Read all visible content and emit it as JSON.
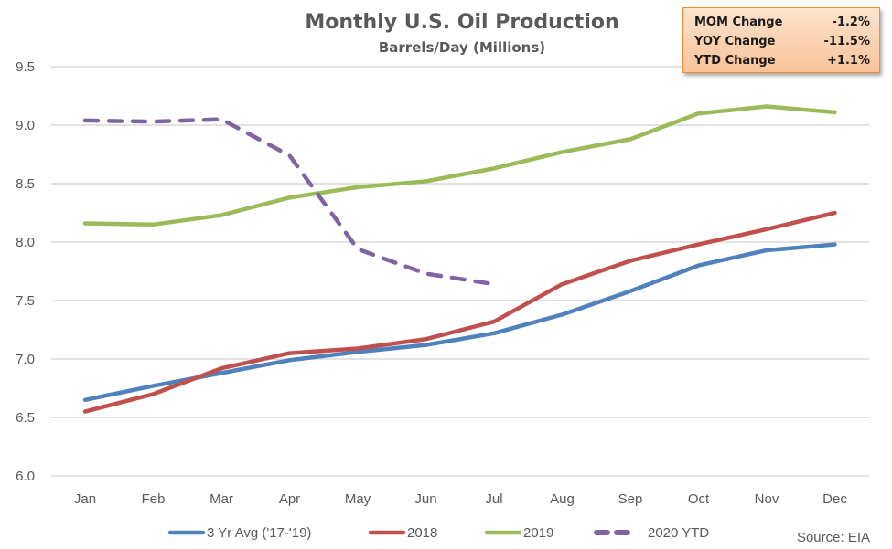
{
  "stats_box": {
    "rows": [
      {
        "label": "MOM Change",
        "value": "-1.2%"
      },
      {
        "label": "YOY Change",
        "value": "-11.5%"
      },
      {
        "label": "YTD Change",
        "value": "+1.1%"
      }
    ],
    "border_color": "#f08a3c"
  },
  "source": "Source: EIA",
  "chart_data": {
    "type": "line",
    "title": "Monthly U.S. Oil Production",
    "subtitle": "Barrels/Day (Millions)",
    "xlabel": "",
    "ylabel": "",
    "categories": [
      "Jan",
      "Feb",
      "Mar",
      "Apr",
      "May",
      "Jun",
      "Jul",
      "Aug",
      "Sep",
      "Oct",
      "Nov",
      "Dec"
    ],
    "ylim": [
      6.0,
      9.5
    ],
    "yticks": [
      "6.0",
      "6.5",
      "7.0",
      "7.5",
      "8.0",
      "8.5",
      "9.0",
      "9.5"
    ],
    "grid": true,
    "legend_position": "bottom",
    "series": [
      {
        "name": "3 Yr Avg ('17-'19)",
        "color": "#4f81bd",
        "dashed": false,
        "values": [
          6.65,
          6.77,
          6.88,
          6.99,
          7.06,
          7.12,
          7.22,
          7.38,
          7.58,
          7.8,
          7.93,
          7.98
        ]
      },
      {
        "name": "2018",
        "color": "#c0504d",
        "dashed": false,
        "values": [
          6.55,
          6.7,
          6.92,
          7.05,
          7.09,
          7.17,
          7.32,
          7.64,
          7.84,
          7.98,
          8.11,
          8.25
        ]
      },
      {
        "name": "2019",
        "color": "#9bbb59",
        "dashed": false,
        "values": [
          8.16,
          8.15,
          8.23,
          8.38,
          8.47,
          8.52,
          8.63,
          8.77,
          8.88,
          9.1,
          9.16,
          9.11
        ]
      },
      {
        "name": "2020 YTD",
        "color": "#8064a2",
        "dashed": true,
        "values": [
          9.04,
          9.03,
          9.05,
          8.74,
          7.94,
          7.73,
          7.64
        ]
      }
    ]
  }
}
